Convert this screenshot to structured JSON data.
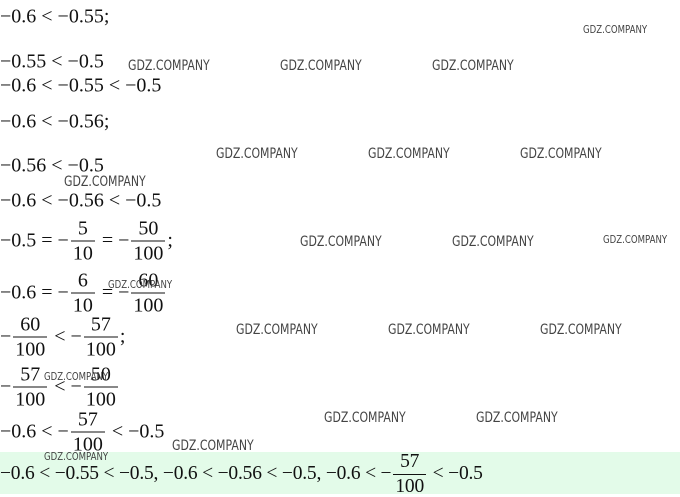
{
  "lines": [
    [
      "−0.6 < −0.55;"
    ],
    [
      "−0.55 < −0.5"
    ],
    [
      "−0.6 < −0.55 < −0.5"
    ],
    [
      "−0.6 < −0.56;"
    ],
    [
      "−0.56 < −0.5"
    ],
    [
      "−0.6 < −0.56 < −0.5"
    ],
    [
      "−0.5 = −",
      {
        "num": "5",
        "den": "10"
      },
      " = −",
      {
        "num": "50",
        "den": "100"
      },
      ";"
    ],
    [
      "−0.6 = −",
      {
        "num": "6",
        "den": "10"
      },
      " = −",
      {
        "num": "60",
        "den": "100"
      }
    ],
    [
      "−",
      {
        "num": "60",
        "den": "100"
      },
      " < −",
      {
        "num": "57",
        "den": "100"
      },
      ";"
    ],
    [
      "−",
      {
        "num": "57",
        "den": "100"
      },
      " < −",
      {
        "num": "50",
        "den": "100"
      }
    ],
    [
      "−0.6 < −",
      {
        "num": "57",
        "den": "100"
      },
      " < −0.5"
    ],
    [
      "−0.6 < −0.55 < −0.5, −0.6 < −0.56 < −0.5, −0.6 < −",
      {
        "num": "57",
        "den": "100"
      },
      " < −0.5"
    ]
  ],
  "watermarks": [
    "GDZ.COMPANY",
    "GDZ.COMPANY",
    "GDZ.COMPANY",
    "GDZ.COMPANY",
    "GDZ.COMPANY",
    "GDZ.COMPANY",
    "GDZ.COMPANY",
    "GDZ.COMPANY",
    "GDZ.COMPANY",
    "GDZ.COMPANY",
    "GDZ.COMPANY",
    "GDZ.COMPANY",
    "GDZ.COMPANY",
    "GDZ.COMPANY",
    "GDZ.COMPANY",
    "GDZ.COMPANY",
    "GDZ.COMPANY",
    "GDZ.COMPANY",
    "GDZ.COMPANY",
    "GDZ.COMPANY"
  ]
}
